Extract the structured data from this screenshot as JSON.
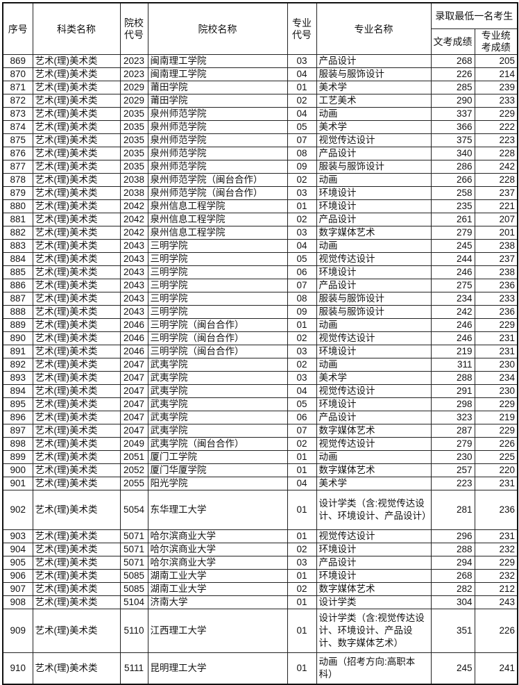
{
  "header": {
    "seq": "序号",
    "category": "科类名称",
    "school_code": "院校代号",
    "school_name": "院校名称",
    "major_code": "专业代号",
    "major_name": "专业名称",
    "min_group": "录取最低一名考生",
    "culture_score": "文考成绩",
    "art_score": "专业统考成绩"
  },
  "rows": [
    [
      "869",
      "艺术(理)美术类",
      "2023",
      "闽南理工学院",
      "03",
      "产品设计",
      "268",
      "205"
    ],
    [
      "870",
      "艺术(理)美术类",
      "2023",
      "闽南理工学院",
      "04",
      "服装与服饰设计",
      "226",
      "214"
    ],
    [
      "871",
      "艺术(理)美术类",
      "2029",
      "莆田学院",
      "01",
      "美术学",
      "285",
      "239"
    ],
    [
      "872",
      "艺术(理)美术类",
      "2029",
      "莆田学院",
      "02",
      "工艺美术",
      "290",
      "233"
    ],
    [
      "873",
      "艺术(理)美术类",
      "2035",
      "泉州师范学院",
      "04",
      "动画",
      "337",
      "229"
    ],
    [
      "874",
      "艺术(理)美术类",
      "2035",
      "泉州师范学院",
      "05",
      "美术学",
      "366",
      "222"
    ],
    [
      "875",
      "艺术(理)美术类",
      "2035",
      "泉州师范学院",
      "07",
      "视觉传达设计",
      "375",
      "223"
    ],
    [
      "876",
      "艺术(理)美术类",
      "2035",
      "泉州师范学院",
      "08",
      "产品设计",
      "340",
      "228"
    ],
    [
      "877",
      "艺术(理)美术类",
      "2035",
      "泉州师范学院",
      "09",
      "服装与服饰设计",
      "286",
      "242"
    ],
    [
      "878",
      "艺术(理)美术类",
      "2038",
      "泉州师范学院（闽台合作）",
      "02",
      "动画",
      "266",
      "228"
    ],
    [
      "879",
      "艺术(理)美术类",
      "2038",
      "泉州师范学院（闽台合作）",
      "03",
      "环境设计",
      "258",
      "237"
    ],
    [
      "880",
      "艺术(理)美术类",
      "2042",
      "泉州信息工程学院",
      "01",
      "环境设计",
      "235",
      "221"
    ],
    [
      "881",
      "艺术(理)美术类",
      "2042",
      "泉州信息工程学院",
      "02",
      "产品设计",
      "261",
      "207"
    ],
    [
      "882",
      "艺术(理)美术类",
      "2042",
      "泉州信息工程学院",
      "03",
      "数字媒体艺术",
      "279",
      "201"
    ],
    [
      "883",
      "艺术(理)美术类",
      "2043",
      "三明学院",
      "04",
      "动画",
      "245",
      "238"
    ],
    [
      "884",
      "艺术(理)美术类",
      "2043",
      "三明学院",
      "05",
      "视觉传达设计",
      "244",
      "237"
    ],
    [
      "885",
      "艺术(理)美术类",
      "2043",
      "三明学院",
      "06",
      "环境设计",
      "246",
      "238"
    ],
    [
      "886",
      "艺术(理)美术类",
      "2043",
      "三明学院",
      "07",
      "产品设计",
      "275",
      "236"
    ],
    [
      "887",
      "艺术(理)美术类",
      "2043",
      "三明学院",
      "08",
      "服装与服饰设计",
      "234",
      "233"
    ],
    [
      "888",
      "艺术(理)美术类",
      "2043",
      "三明学院",
      "09",
      "服装与服饰设计",
      "242",
      "236"
    ],
    [
      "889",
      "艺术(理)美术类",
      "2046",
      "三明学院（闽台合作）",
      "01",
      "动画",
      "246",
      "229"
    ],
    [
      "890",
      "艺术(理)美术类",
      "2046",
      "三明学院（闽台合作）",
      "02",
      "视觉传达设计",
      "246",
      "231"
    ],
    [
      "891",
      "艺术(理)美术类",
      "2046",
      "三明学院（闽台合作）",
      "03",
      "环境设计",
      "219",
      "231"
    ],
    [
      "892",
      "艺术(理)美术类",
      "2047",
      "武夷学院",
      "02",
      "动画",
      "311",
      "230"
    ],
    [
      "893",
      "艺术(理)美术类",
      "2047",
      "武夷学院",
      "03",
      "美术学",
      "288",
      "234"
    ],
    [
      "894",
      "艺术(理)美术类",
      "2047",
      "武夷学院",
      "04",
      "视觉传达设计",
      "291",
      "230"
    ],
    [
      "895",
      "艺术(理)美术类",
      "2047",
      "武夷学院",
      "05",
      "环境设计",
      "298",
      "229"
    ],
    [
      "896",
      "艺术(理)美术类",
      "2047",
      "武夷学院",
      "06",
      "产品设计",
      "323",
      "219"
    ],
    [
      "897",
      "艺术(理)美术类",
      "2047",
      "武夷学院",
      "07",
      "数字媒体艺术",
      "287",
      "229"
    ],
    [
      "898",
      "艺术(理)美术类",
      "2049",
      "武夷学院（闽台合作）",
      "02",
      "视觉传达设计",
      "279",
      "226"
    ],
    [
      "899",
      "艺术(理)美术类",
      "2051",
      "厦门工学院",
      "01",
      "动画",
      "230",
      "225"
    ],
    [
      "900",
      "艺术(理)美术类",
      "2052",
      "厦门华厦学院",
      "01",
      "数字媒体艺术",
      "257",
      "220"
    ],
    [
      "901",
      "艺术(理)美术类",
      "2055",
      "阳光学院",
      "04",
      "美术学",
      "223",
      "231"
    ],
    [
      "902",
      "艺术(理)美术类",
      "5054",
      "东华理工大学",
      "01",
      "设计学类（含:视觉传达设计、环境设计、产品设计）",
      "281",
      "236"
    ],
    [
      "903",
      "艺术(理)美术类",
      "5071",
      "哈尔滨商业大学",
      "01",
      "视觉传达设计",
      "296",
      "231"
    ],
    [
      "904",
      "艺术(理)美术类",
      "5071",
      "哈尔滨商业大学",
      "02",
      "环境设计",
      "288",
      "232"
    ],
    [
      "905",
      "艺术(理)美术类",
      "5071",
      "哈尔滨商业大学",
      "03",
      "产品设计",
      "294",
      "229"
    ],
    [
      "906",
      "艺术(理)美术类",
      "5085",
      "湖南工业大学",
      "01",
      "环境设计",
      "268",
      "232"
    ],
    [
      "907",
      "艺术(理)美术类",
      "5085",
      "湖南工业大学",
      "02",
      "数字媒体艺术",
      "282",
      "212"
    ],
    [
      "908",
      "艺术(理)美术类",
      "5104",
      "济南大学",
      "01",
      "设计学类",
      "304",
      "243"
    ],
    [
      "909",
      "艺术(理)美术类",
      "5110",
      "江西理工大学",
      "01",
      "设计学类（含:视觉传达设计、环境设计、产品设计、数字媒体艺术）",
      "351",
      "226"
    ],
    [
      "910",
      "艺术(理)美术类",
      "5111",
      "昆明理工大学",
      "01",
      "动画（招考方向:高职本科）",
      "245",
      "241"
    ]
  ]
}
